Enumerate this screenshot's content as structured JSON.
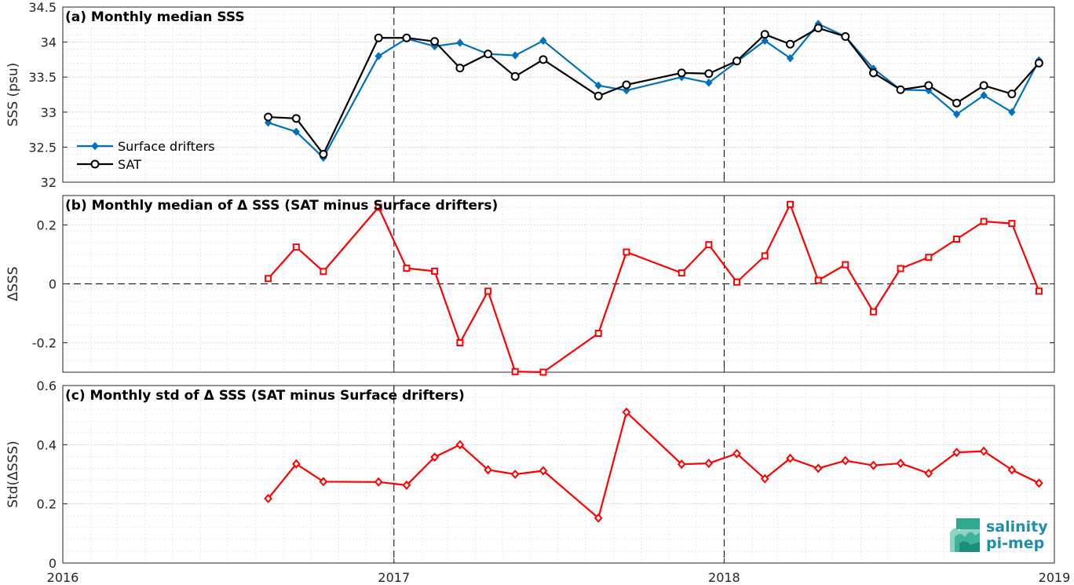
{
  "chart_data": [
    {
      "type": "line",
      "title": "(a) Monthly median SSS",
      "ylabel": "SSS (psu)",
      "ylim": [
        32,
        34.5
      ],
      "yticks": [
        "32",
        "32.5",
        "33",
        "33.5",
        "34",
        "34.5"
      ],
      "xlim": [
        "2016-01-01",
        "2019-01-01"
      ],
      "xticks": [
        "2016",
        "2017",
        "2018",
        "2019"
      ],
      "grid": true,
      "legend_position": "bottom-left",
      "series": [
        {
          "name": "Surface drifters",
          "color": "#0072bd",
          "marker": "diamond",
          "x": [
            "2016-08-15",
            "2016-09-15",
            "2016-10-15",
            "2016-12-15",
            "2017-01-15",
            "2017-02-15",
            "2017-03-15",
            "2017-04-15",
            "2017-05-15",
            "2017-06-15",
            "2017-08-15",
            "2017-09-15",
            "2017-11-15",
            "2017-12-15",
            "2018-01-15",
            "2018-02-15",
            "2018-03-15",
            "2018-04-15",
            "2018-05-15",
            "2018-06-15",
            "2018-07-15",
            "2018-08-15",
            "2018-09-15",
            "2018-10-15",
            "2018-11-15",
            "2018-12-15"
          ],
          "values": [
            32.85,
            32.72,
            32.35,
            33.8,
            34.05,
            33.94,
            33.99,
            33.83,
            33.81,
            34.02,
            33.38,
            33.31,
            33.5,
            33.42,
            33.72,
            34.02,
            33.77,
            34.26,
            34.08,
            33.62,
            33.32,
            33.31,
            32.97,
            33.24,
            33.0,
            33.74
          ]
        },
        {
          "name": "SAT",
          "color": "#000000",
          "marker": "circle",
          "x": [
            "2016-08-15",
            "2016-09-15",
            "2016-10-15",
            "2016-12-15",
            "2017-01-15",
            "2017-02-15",
            "2017-03-15",
            "2017-04-15",
            "2017-05-15",
            "2017-06-15",
            "2017-08-15",
            "2017-09-15",
            "2017-11-15",
            "2017-12-15",
            "2018-01-15",
            "2018-02-15",
            "2018-03-15",
            "2018-04-15",
            "2018-05-15",
            "2018-06-15",
            "2018-07-15",
            "2018-08-15",
            "2018-09-15",
            "2018-10-15",
            "2018-11-15",
            "2018-12-15"
          ],
          "values": [
            32.93,
            32.91,
            32.4,
            34.06,
            34.06,
            34.01,
            33.63,
            33.83,
            33.51,
            33.75,
            33.23,
            33.39,
            33.56,
            33.55,
            33.73,
            34.11,
            33.97,
            34.2,
            34.08,
            33.56,
            33.32,
            33.38,
            33.13,
            33.38,
            33.26,
            33.7
          ]
        }
      ]
    },
    {
      "type": "line",
      "title": "(b) Monthly median of Δ SSS (SAT minus Surface drifters)",
      "ylabel": "ΔSSS",
      "ylim": [
        -0.3,
        0.3
      ],
      "yticks": [
        "-0.2",
        "0",
        "0.2"
      ],
      "xlim": [
        "2016-01-01",
        "2019-01-01"
      ],
      "grid": true,
      "series": [
        {
          "color": "#ff0000",
          "marker": "square",
          "x": [
            "2016-08-15",
            "2016-09-15",
            "2016-10-15",
            "2016-12-15",
            "2017-01-15",
            "2017-02-15",
            "2017-03-15",
            "2017-04-15",
            "2017-05-15",
            "2017-06-15",
            "2017-08-15",
            "2017-09-15",
            "2017-11-15",
            "2017-12-15",
            "2018-01-15",
            "2018-02-15",
            "2018-03-15",
            "2018-04-15",
            "2018-05-15",
            "2018-06-15",
            "2018-07-15",
            "2018-08-15",
            "2018-09-15",
            "2018-10-15",
            "2018-11-15",
            "2018-12-15"
          ],
          "values": [
            0.018,
            0.125,
            0.042,
            0.26,
            0.053,
            0.043,
            -0.2,
            -0.025,
            -0.298,
            -0.3,
            -0.168,
            0.108,
            0.037,
            0.133,
            0.006,
            0.095,
            0.27,
            0.012,
            0.065,
            -0.095,
            0.052,
            0.09,
            0.152,
            0.212,
            0.205,
            -0.025
          ]
        }
      ]
    },
    {
      "type": "line",
      "title": "(c) Monthly std of Δ SSS (SAT minus Surface drifters)",
      "ylabel": "Std(ΔSSS)",
      "ylim": [
        0,
        0.6
      ],
      "yticks": [
        "0",
        "0.2",
        "0.4",
        "0.6"
      ],
      "xlim": [
        "2016-01-01",
        "2019-01-01"
      ],
      "xticks": [
        "2016",
        "2017",
        "2018",
        "2019"
      ],
      "grid": true,
      "series": [
        {
          "color": "#ff0000",
          "marker": "diamond",
          "x": [
            "2016-08-15",
            "2016-09-15",
            "2016-10-15",
            "2016-12-15",
            "2017-01-15",
            "2017-02-15",
            "2017-03-15",
            "2017-04-15",
            "2017-05-15",
            "2017-06-15",
            "2017-08-15",
            "2017-09-15",
            "2017-11-15",
            "2017-12-15",
            "2018-01-15",
            "2018-02-15",
            "2018-03-15",
            "2018-04-15",
            "2018-05-15",
            "2018-06-15",
            "2018-07-15",
            "2018-08-15",
            "2018-09-15",
            "2018-10-15",
            "2018-11-15",
            "2018-12-15"
          ],
          "values": [
            0.218,
            0.335,
            0.275,
            0.274,
            0.263,
            0.358,
            0.4,
            0.315,
            0.3,
            0.312,
            0.152,
            0.51,
            0.334,
            0.337,
            0.37,
            0.285,
            0.354,
            0.32,
            0.346,
            0.33,
            0.337,
            0.303,
            0.374,
            0.378,
            0.315,
            0.27
          ]
        }
      ]
    }
  ],
  "logo": {
    "line1": "salinity",
    "line2": "pi-mep",
    "color": "#1f8fa8"
  }
}
